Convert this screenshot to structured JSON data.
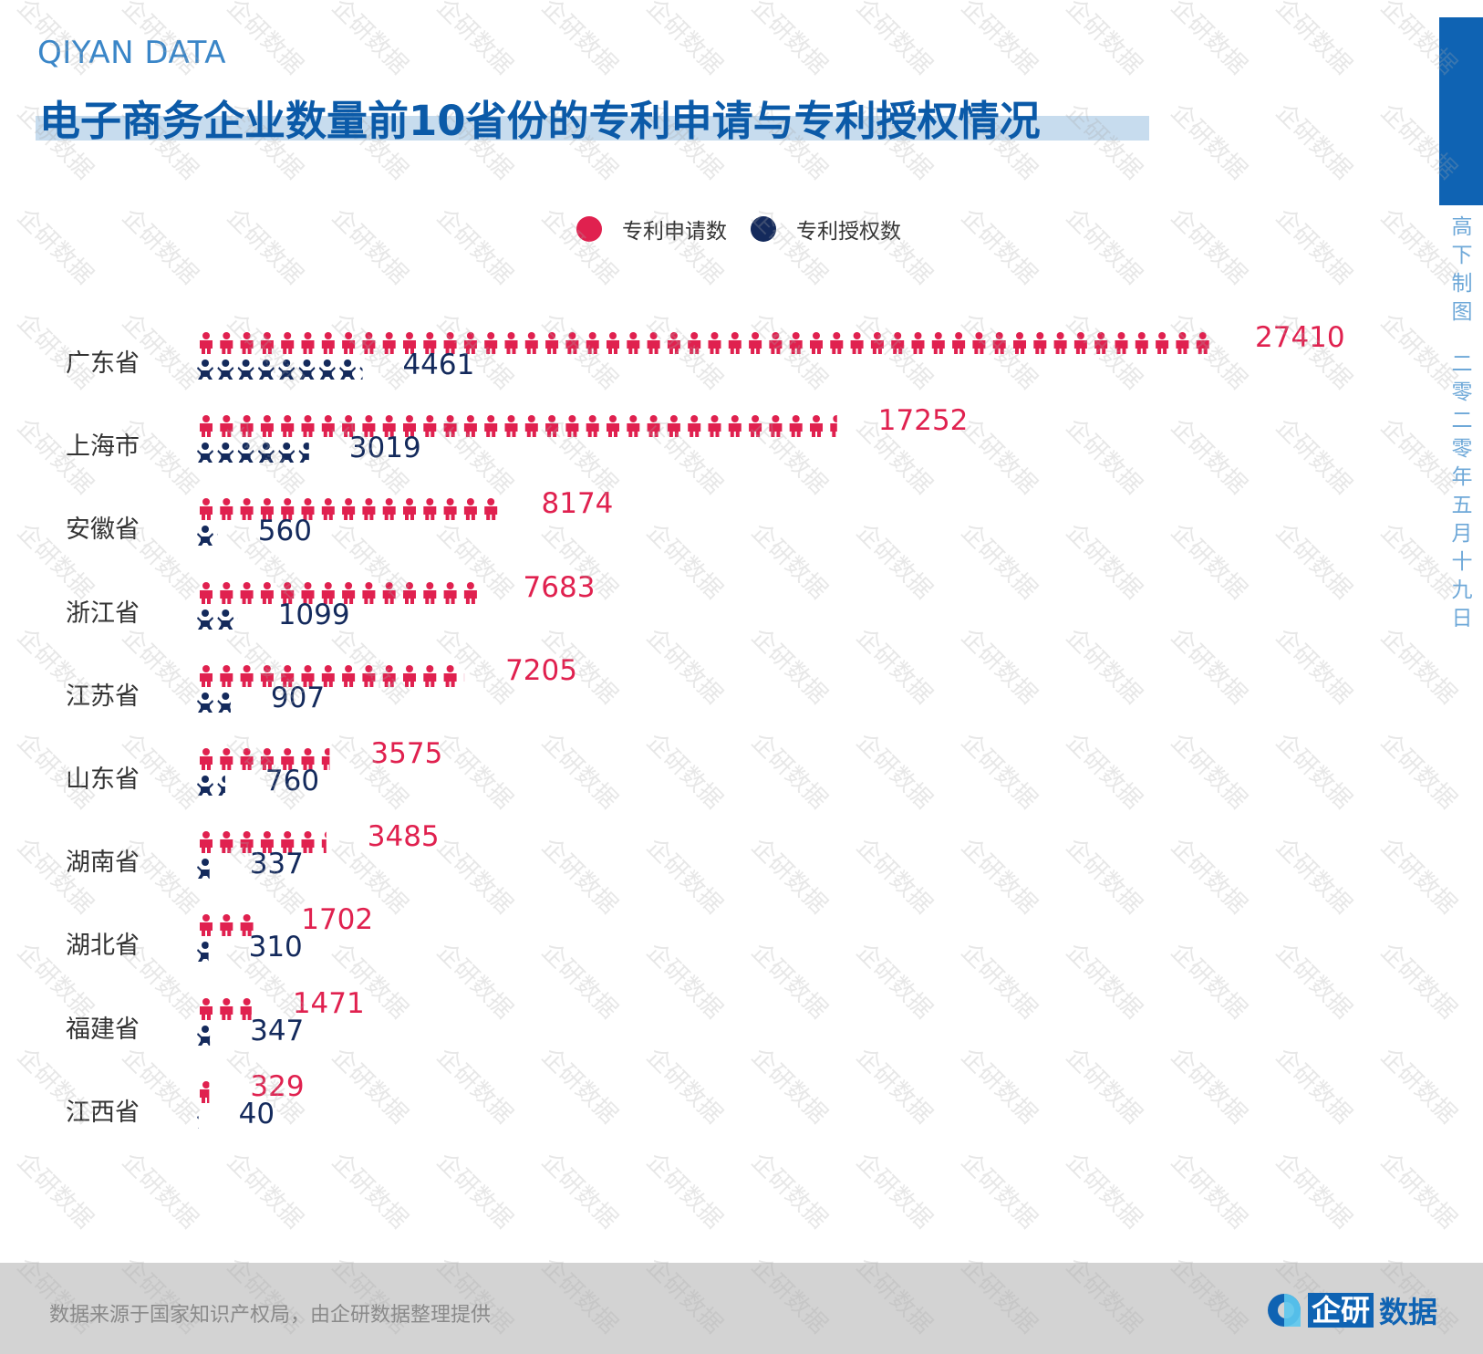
{
  "brand": "QIYAN DATA",
  "watermark": "企研数据",
  "side_text": {
    "top": "高下制图",
    "date": "二零二零年五月十九日"
  },
  "footer": {
    "source": "数据来源于国家知识产权局，由企研数据整理提供",
    "logo_box": "企研",
    "logo_text": "数据"
  },
  "colors": {
    "application": "#e0214f",
    "grant": "#142a5c",
    "accent": "#0f63b3"
  },
  "chart_data": {
    "type": "bar",
    "orientation": "horizontal",
    "style": "pictogram",
    "title": "电子商务企业数量前10省份的专利申请与专利授权情况",
    "legend": [
      "专利申请数",
      "专利授权数"
    ],
    "legend_position": "top-center",
    "categories": [
      "广东省",
      "上海市",
      "安徽省",
      "浙江省",
      "江苏省",
      "山东省",
      "湖南省",
      "湖北省",
      "福建省",
      "江西省"
    ],
    "series": [
      {
        "name": "专利申请数",
        "icon": "person-icon",
        "values": [
          27410,
          17252,
          8174,
          7683,
          7205,
          3575,
          3485,
          1702,
          1471,
          329
        ]
      },
      {
        "name": "专利授权数",
        "icon": "baby-icon",
        "values": [
          4461,
          3019,
          560,
          1099,
          907,
          760,
          337,
          310,
          347,
          40
        ]
      }
    ],
    "value_labels": {
      "applications": [
        "27410",
        "17252",
        "8174",
        "7683",
        "7205",
        "3575",
        "3485",
        "1702",
        "1471",
        "329"
      ],
      "grants": [
        "4461",
        "3019",
        "560",
        "1099",
        "907",
        "760",
        "337",
        "310",
        "347",
        "40"
      ]
    },
    "grid": false
  }
}
